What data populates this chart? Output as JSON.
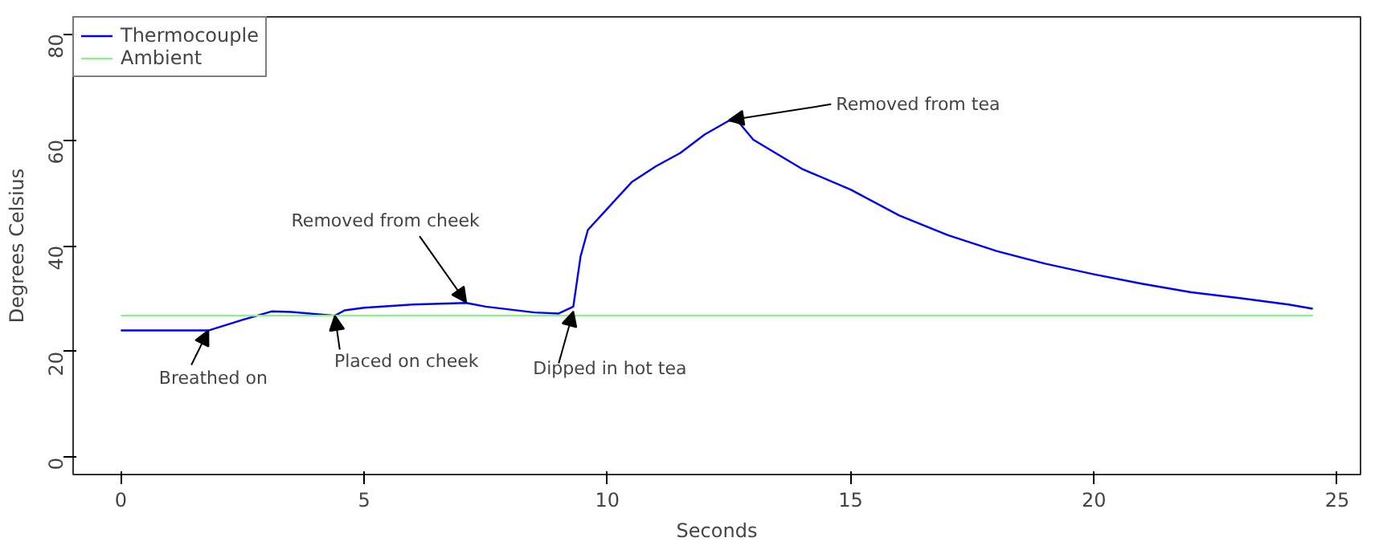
{
  "chart_data": {
    "type": "line",
    "xlabel": "Seconds",
    "ylabel": "Degrees Celsius",
    "xlim": [
      -0.98,
      25.48
    ],
    "ylim": [
      -3.2,
      83.2
    ],
    "xticks": [
      0,
      5,
      10,
      15,
      20,
      25
    ],
    "yticks": [
      0,
      20,
      40,
      60,
      80
    ],
    "grid": false,
    "legend": "top left",
    "marker": "none",
    "line_style": "solid",
    "series": [
      {
        "name": "Thermocouple",
        "color": "#0000ff",
        "x": [
          0,
          1.8,
          2.5,
          3.1,
          3.5,
          4.4,
          4.6,
          5,
          6,
          7.1,
          7.5,
          8.5,
          9,
          9.3,
          9.45,
          9.6,
          10,
          10.5,
          11,
          11.5,
          12,
          12.5,
          12.7,
          13,
          14,
          15,
          16,
          17,
          18,
          19,
          20,
          21,
          22,
          23,
          24,
          24.5
        ],
        "values": [
          24,
          24,
          26,
          27.6,
          27.5,
          26.8,
          27.8,
          28.3,
          28.9,
          29.2,
          28.5,
          27.4,
          27.2,
          28.5,
          38,
          43,
          47,
          52,
          55,
          57.5,
          61,
          63.6,
          63.3,
          60,
          54.5,
          50.6,
          45.7,
          42,
          39,
          36.6,
          34.6,
          32.8,
          31.2,
          30.1,
          28.9,
          28.1
        ]
      },
      {
        "name": "Ambient",
        "color": "#90ee90",
        "x": [
          0,
          24.5
        ],
        "values": [
          26.8,
          26.8
        ]
      }
    ],
    "annotations": [
      {
        "text": "Breathed on",
        "x": 1.8,
        "y": 24
      },
      {
        "text": "Placed on cheek",
        "x": 4.4,
        "y": 26.8
      },
      {
        "text": "Removed from cheek",
        "x": 7.1,
        "y": 29.3
      },
      {
        "text": "Dipped in hot tea",
        "x": 9.3,
        "y": 27.6
      },
      {
        "text": "Removed from tea",
        "x": 12.5,
        "y": 63.7
      }
    ]
  }
}
